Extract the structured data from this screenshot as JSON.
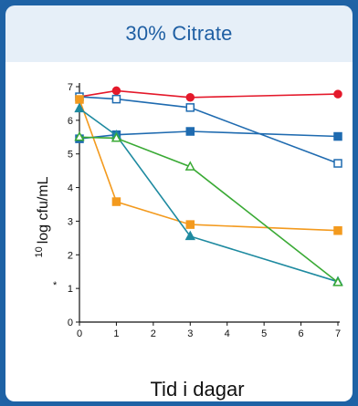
{
  "title": "30% Citrate",
  "chart_data": {
    "type": "line",
    "title": "30% Citrate",
    "xlabel": "Tid i dagar",
    "ylabel_sup": "10",
    "ylabel": "log cfu/mL",
    "y_marker": "*",
    "xlim": [
      0,
      7
    ],
    "ylim": [
      0,
      7
    ],
    "xticks": [
      "0",
      "1",
      "2",
      "3",
      "4",
      "5",
      "6",
      "7"
    ],
    "yticks": [
      "0",
      "1",
      "2",
      "3",
      "4",
      "5",
      "6",
      "7"
    ],
    "grid": false,
    "series": [
      {
        "color": "#e4192b",
        "marker": "circle",
        "filled": true,
        "x": [
          0,
          1,
          3,
          7
        ],
        "y": [
          6.7,
          6.88,
          6.68,
          6.78
        ]
      },
      {
        "color": "#1f6bb0",
        "marker": "square",
        "filled": false,
        "x": [
          0,
          1,
          3,
          7
        ],
        "y": [
          6.7,
          6.63,
          6.38,
          4.72
        ]
      },
      {
        "color": "#1f6bb0",
        "marker": "square",
        "filled": true,
        "x": [
          0,
          1,
          3,
          7
        ],
        "y": [
          5.45,
          5.57,
          5.67,
          5.52
        ]
      },
      {
        "color": "#f39a1e",
        "marker": "square",
        "filled": true,
        "x": [
          0,
          1,
          3,
          7
        ],
        "y": [
          6.62,
          3.58,
          2.9,
          2.72
        ]
      },
      {
        "color": "#1e8aa0",
        "marker": "triangle",
        "filled": true,
        "x": [
          0,
          1,
          3,
          7
        ],
        "y": [
          6.35,
          5.55,
          2.55,
          1.2
        ]
      },
      {
        "color": "#3aaa35",
        "marker": "triangle",
        "filled": false,
        "x": [
          0,
          1,
          3,
          7
        ],
        "y": [
          5.5,
          5.47,
          4.62,
          1.18
        ]
      }
    ]
  }
}
